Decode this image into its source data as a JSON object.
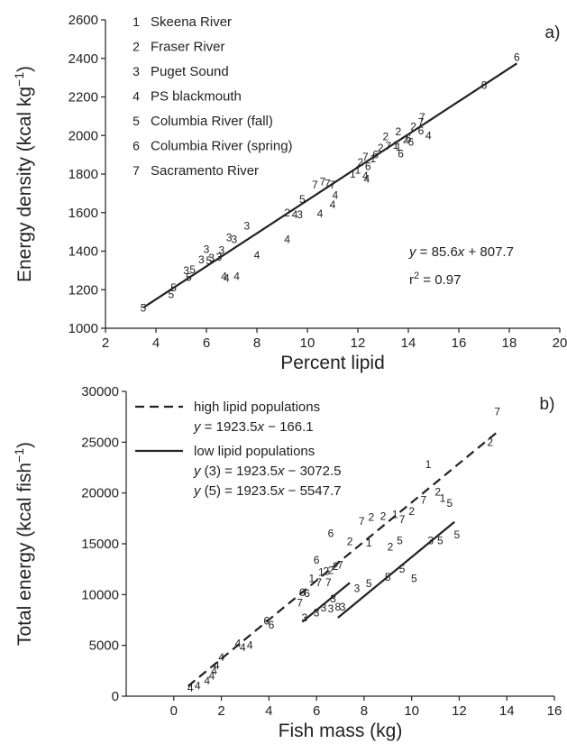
{
  "chart_data": [
    {
      "type": "scatter",
      "panel_label": "a)",
      "xlabel": "Percent lipid",
      "ylabel": "Energy density (kcal kg⁻¹)",
      "xlim": [
        2,
        20
      ],
      "ylim": [
        1000,
        2600
      ],
      "xticks": [
        2,
        4,
        6,
        8,
        10,
        12,
        14,
        16,
        18,
        20
      ],
      "yticks": [
        1000,
        1200,
        1400,
        1600,
        1800,
        2000,
        2200,
        2400,
        2600
      ],
      "legend_position": "top-left",
      "legend": [
        {
          "code": "1",
          "label": "Skeena River"
        },
        {
          "code": "2",
          "label": "Fraser River"
        },
        {
          "code": "3",
          "label": "Puget Sound"
        },
        {
          "code": "4",
          "label": "PS blackmouth"
        },
        {
          "code": "5",
          "label": "Columbia River (fall)"
        },
        {
          "code": "6",
          "label": "Columbia River (spring)"
        },
        {
          "code": "7",
          "label": "Sacramento River"
        }
      ],
      "annotations": [
        "y = 85.6x + 807.7",
        "r2 = 0.97"
      ],
      "fit": {
        "slope": 85.6,
        "intercept": 807.7,
        "x_range": [
          3.5,
          18.3
        ]
      },
      "points": [
        {
          "label": "5",
          "x": 3.5,
          "y": 1105
        },
        {
          "label": "5",
          "x": 4.6,
          "y": 1175
        },
        {
          "label": "5",
          "x": 4.7,
          "y": 1210
        },
        {
          "label": "5",
          "x": 5.3,
          "y": 1265
        },
        {
          "label": "3",
          "x": 5.2,
          "y": 1300
        },
        {
          "label": "5",
          "x": 5.45,
          "y": 1305
        },
        {
          "label": "3",
          "x": 5.8,
          "y": 1355
        },
        {
          "label": "5",
          "x": 6.1,
          "y": 1350
        },
        {
          "label": "3",
          "x": 6.2,
          "y": 1365
        },
        {
          "label": "3",
          "x": 6.5,
          "y": 1370
        },
        {
          "label": "3",
          "x": 6.0,
          "y": 1410
        },
        {
          "label": "3",
          "x": 6.6,
          "y": 1405
        },
        {
          "label": "3",
          "x": 6.9,
          "y": 1470
        },
        {
          "label": "3",
          "x": 7.1,
          "y": 1460
        },
        {
          "label": "3",
          "x": 7.6,
          "y": 1530
        },
        {
          "label": "4",
          "x": 6.7,
          "y": 1270
        },
        {
          "label": "4",
          "x": 6.8,
          "y": 1260
        },
        {
          "label": "4",
          "x": 7.2,
          "y": 1270
        },
        {
          "label": "4",
          "x": 8.0,
          "y": 1380
        },
        {
          "label": "4",
          "x": 9.2,
          "y": 1460
        },
        {
          "label": "2",
          "x": 9.2,
          "y": 1600
        },
        {
          "label": "4",
          "x": 9.5,
          "y": 1590
        },
        {
          "label": "3",
          "x": 9.7,
          "y": 1590
        },
        {
          "label": "4",
          "x": 10.5,
          "y": 1595
        },
        {
          "label": "4",
          "x": 11.0,
          "y": 1640
        },
        {
          "label": "4",
          "x": 11.1,
          "y": 1690
        },
        {
          "label": "5",
          "x": 9.8,
          "y": 1670
        },
        {
          "label": "7",
          "x": 10.3,
          "y": 1745
        },
        {
          "label": "7",
          "x": 10.6,
          "y": 1760
        },
        {
          "label": "7",
          "x": 10.8,
          "y": 1750
        },
        {
          "label": "7",
          "x": 11.0,
          "y": 1745
        },
        {
          "label": "1",
          "x": 11.8,
          "y": 1800
        },
        {
          "label": "1",
          "x": 12.0,
          "y": 1820
        },
        {
          "label": "4",
          "x": 12.3,
          "y": 1790
        },
        {
          "label": "4",
          "x": 12.35,
          "y": 1775
        },
        {
          "label": "2",
          "x": 12.1,
          "y": 1860
        },
        {
          "label": "6",
          "x": 12.4,
          "y": 1840
        },
        {
          "label": "7",
          "x": 12.3,
          "y": 1890
        },
        {
          "label": "1",
          "x": 12.6,
          "y": 1880
        },
        {
          "label": "6",
          "x": 12.7,
          "y": 1900
        },
        {
          "label": "2",
          "x": 12.9,
          "y": 1935
        },
        {
          "label": "7",
          "x": 13.2,
          "y": 1945
        },
        {
          "label": "6",
          "x": 13.7,
          "y": 1905
        },
        {
          "label": "2",
          "x": 13.1,
          "y": 1995
        },
        {
          "label": "1",
          "x": 13.5,
          "y": 1950
        },
        {
          "label": "1",
          "x": 13.6,
          "y": 1940
        },
        {
          "label": "2",
          "x": 13.6,
          "y": 2020
        },
        {
          "label": "2",
          "x": 13.9,
          "y": 1980
        },
        {
          "label": "6",
          "x": 14.0,
          "y": 1985
        },
        {
          "label": "6",
          "x": 14.1,
          "y": 1965
        },
        {
          "label": "2",
          "x": 14.2,
          "y": 2045
        },
        {
          "label": "7",
          "x": 14.5,
          "y": 2070
        },
        {
          "label": "7",
          "x": 14.55,
          "y": 2095
        },
        {
          "label": "6",
          "x": 14.5,
          "y": 2025
        },
        {
          "label": "4",
          "x": 14.8,
          "y": 2000
        },
        {
          "label": "6",
          "x": 17.0,
          "y": 2260
        },
        {
          "label": "6",
          "x": 18.3,
          "y": 2405
        }
      ]
    },
    {
      "type": "scatter",
      "panel_label": "b)",
      "xlabel": "Fish mass (kg)",
      "ylabel": "Total energy  (kcal fish⁻¹)",
      "xlim": [
        -2,
        16
      ],
      "ylim": [
        0,
        30000
      ],
      "xticks": [
        0,
        2,
        4,
        6,
        8,
        10,
        12,
        14,
        16
      ],
      "yticks": [
        0,
        5000,
        10000,
        15000,
        20000,
        25000,
        30000
      ],
      "legend_position": "top-left",
      "legend": [
        {
          "style": "dashed",
          "label": "high lipid populations",
          "equation": "y = 1923.5x − 166.1"
        },
        {
          "style": "solid",
          "label": "low lipid populations",
          "equations": [
            "y (3) = 1923.5x − 3072.5",
            "y (5) = 1923.5x − 5547.7"
          ]
        }
      ],
      "fits": [
        {
          "style": "dashed",
          "slope": 1923.5,
          "intercept": -166.1,
          "x_range": [
            0.6,
            13.6
          ]
        },
        {
          "style": "solid",
          "slope": 1923.5,
          "intercept": -3072.5,
          "x_range": [
            5.4,
            7.4
          ]
        },
        {
          "style": "solid",
          "slope": 1923.5,
          "intercept": -5547.7,
          "x_range": [
            6.9,
            11.8
          ]
        }
      ],
      "points": [
        {
          "label": "4",
          "x": 0.7,
          "y": 800
        },
        {
          "label": "4",
          "x": 1.0,
          "y": 1000
        },
        {
          "label": "4",
          "x": 1.4,
          "y": 1500
        },
        {
          "label": "4",
          "x": 1.6,
          "y": 2000
        },
        {
          "label": "4",
          "x": 1.7,
          "y": 2500
        },
        {
          "label": "4",
          "x": 1.8,
          "y": 3000
        },
        {
          "label": "4",
          "x": 2.0,
          "y": 3800
        },
        {
          "label": "4",
          "x": 2.7,
          "y": 5200
        },
        {
          "label": "4",
          "x": 2.9,
          "y": 4800
        },
        {
          "label": "4",
          "x": 3.2,
          "y": 5000
        },
        {
          "label": "6",
          "x": 3.9,
          "y": 7400
        },
        {
          "label": "6",
          "x": 4.1,
          "y": 7000
        },
        {
          "label": "3",
          "x": 5.5,
          "y": 7700
        },
        {
          "label": "3",
          "x": 6.0,
          "y": 8200
        },
        {
          "label": "3",
          "x": 6.3,
          "y": 8700
        },
        {
          "label": "3",
          "x": 6.6,
          "y": 8600
        },
        {
          "label": "3",
          "x": 7.1,
          "y": 8800
        },
        {
          "label": "3",
          "x": 7.7,
          "y": 10600
        },
        {
          "label": "3",
          "x": 6.7,
          "y": 9600
        },
        {
          "label": "8",
          "x": 6.9,
          "y": 8800
        },
        {
          "label": "7",
          "x": 5.3,
          "y": 9200
        },
        {
          "label": "6",
          "x": 5.4,
          "y": 10200
        },
        {
          "label": "6",
          "x": 5.6,
          "y": 10100
        },
        {
          "label": "1",
          "x": 5.8,
          "y": 11600
        },
        {
          "label": "7",
          "x": 6.1,
          "y": 11200
        },
        {
          "label": "1",
          "x": 6.2,
          "y": 12200
        },
        {
          "label": "2",
          "x": 6.4,
          "y": 12300
        },
        {
          "label": "2",
          "x": 6.8,
          "y": 12800
        },
        {
          "label": "2",
          "x": 6.6,
          "y": 12400
        },
        {
          "label": "6",
          "x": 6.0,
          "y": 13400
        },
        {
          "label": "7",
          "x": 6.5,
          "y": 11200
        },
        {
          "label": "7",
          "x": 7.0,
          "y": 12900
        },
        {
          "label": "2",
          "x": 7.4,
          "y": 15200
        },
        {
          "label": "6",
          "x": 6.6,
          "y": 16000
        },
        {
          "label": "7",
          "x": 7.9,
          "y": 17200
        },
        {
          "label": "2",
          "x": 8.3,
          "y": 17600
        },
        {
          "label": "2",
          "x": 8.8,
          "y": 17700
        },
        {
          "label": "1",
          "x": 9.3,
          "y": 17900
        },
        {
          "label": "1",
          "x": 8.2,
          "y": 15100
        },
        {
          "label": "2",
          "x": 9.1,
          "y": 14700
        },
        {
          "label": "7",
          "x": 9.6,
          "y": 17400
        },
        {
          "label": "2",
          "x": 10.0,
          "y": 18200
        },
        {
          "label": "5",
          "x": 8.2,
          "y": 11100
        },
        {
          "label": "5",
          "x": 9.0,
          "y": 11700
        },
        {
          "label": "5",
          "x": 9.5,
          "y": 15300
        },
        {
          "label": "5",
          "x": 10.1,
          "y": 11600
        },
        {
          "label": "5",
          "x": 9.6,
          "y": 12500
        },
        {
          "label": "3",
          "x": 10.8,
          "y": 15300
        },
        {
          "label": "5",
          "x": 11.2,
          "y": 15300
        },
        {
          "label": "5",
          "x": 11.9,
          "y": 15900
        },
        {
          "label": "7",
          "x": 10.5,
          "y": 19300
        },
        {
          "label": "1",
          "x": 10.7,
          "y": 22800
        },
        {
          "label": "2",
          "x": 11.1,
          "y": 20100
        },
        {
          "label": "1",
          "x": 11.3,
          "y": 19500
        },
        {
          "label": "5",
          "x": 11.6,
          "y": 19000
        },
        {
          "label": "2",
          "x": 13.3,
          "y": 25000
        },
        {
          "label": "7",
          "x": 13.6,
          "y": 28000
        }
      ]
    }
  ]
}
